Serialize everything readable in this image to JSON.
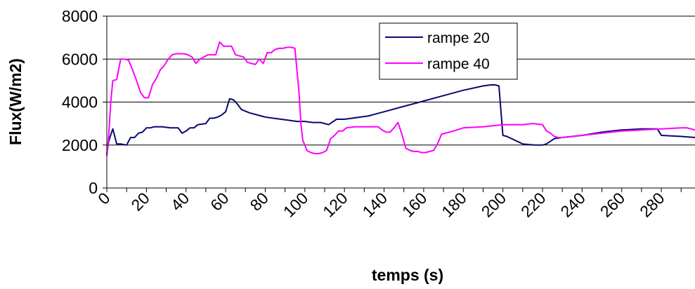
{
  "chart_data": {
    "type": "line",
    "title": "",
    "xlabel": "temps (s)",
    "ylabel": "Flux(W/m2)",
    "xlim": [
      0,
      297
    ],
    "ylim": [
      0,
      8000
    ],
    "x_ticks": [
      "0",
      "20",
      "40",
      "60",
      "80",
      "100",
      "120",
      "140",
      "160",
      "180",
      "200",
      "220",
      "240",
      "260",
      "280"
    ],
    "y_ticks": [
      "0",
      "2000",
      "4000",
      "6000",
      "8000"
    ],
    "grid": "horizontal",
    "legend_position": "top-center-right",
    "series": [
      {
        "name": "rampe 20",
        "color": "#0a0a6e",
        "x": [
          0,
          1,
          3,
          5,
          7,
          10,
          12,
          14,
          16,
          18,
          20,
          22,
          24,
          28,
          32,
          36,
          38,
          40,
          42,
          44,
          46,
          50,
          52,
          54,
          56,
          58,
          60,
          62,
          64,
          66,
          68,
          72,
          76,
          80,
          84,
          88,
          92,
          96,
          100,
          104,
          108,
          112,
          116,
          120,
          124,
          128,
          132,
          136,
          140,
          150,
          160,
          170,
          180,
          190,
          194,
          196,
          198,
          200,
          202,
          210,
          216,
          220,
          222,
          226,
          230,
          240,
          250,
          260,
          270,
          276,
          278,
          280,
          290,
          297
        ],
        "values": [
          1600,
          2200,
          2750,
          2050,
          2050,
          2000,
          2350,
          2350,
          2550,
          2600,
          2800,
          2800,
          2850,
          2850,
          2800,
          2800,
          2550,
          2650,
          2800,
          2800,
          2950,
          3000,
          3250,
          3250,
          3300,
          3400,
          3550,
          4150,
          4100,
          3900,
          3650,
          3500,
          3400,
          3300,
          3250,
          3200,
          3150,
          3100,
          3100,
          3050,
          3050,
          2950,
          3200,
          3200,
          3250,
          3300,
          3350,
          3450,
          3550,
          3800,
          4050,
          4300,
          4550,
          4750,
          4800,
          4800,
          4750,
          2450,
          2400,
          2050,
          2000,
          2000,
          2050,
          2300,
          2350,
          2450,
          2600,
          2700,
          2750,
          2750,
          2750,
          2450,
          2400,
          2350
        ]
      },
      {
        "name": "rampe 40",
        "color": "#ff00ff",
        "x": [
          0,
          1,
          2,
          3,
          5,
          7,
          9,
          11,
          13,
          15,
          17,
          19,
          21,
          23,
          25,
          27,
          29,
          31,
          33,
          35,
          39,
          41,
          43,
          45,
          47,
          49,
          51,
          53,
          55,
          57,
          59,
          61,
          63,
          65,
          67,
          69,
          71,
          73,
          75,
          77,
          79,
          81,
          83,
          85,
          87,
          89,
          91,
          93,
          95,
          96,
          97,
          98,
          99,
          100,
          101,
          103,
          105,
          107,
          109,
          111,
          113,
          115,
          117,
          119,
          121,
          125,
          131,
          135,
          137,
          139,
          141,
          143,
          145,
          147,
          149,
          151,
          153,
          155,
          157,
          159,
          161,
          163,
          165,
          167,
          169,
          171,
          175,
          180,
          190,
          200,
          210,
          215,
          220,
          222,
          224,
          226,
          228,
          230,
          240,
          250,
          260,
          270,
          280,
          290,
          293,
          297
        ],
        "values": [
          1500,
          2500,
          4000,
          5000,
          5050,
          6000,
          6000,
          5950,
          5500,
          5000,
          4450,
          4200,
          4200,
          4800,
          5100,
          5500,
          5700,
          6000,
          6200,
          6250,
          6250,
          6200,
          6100,
          5800,
          6000,
          6100,
          6200,
          6200,
          6200,
          6800,
          6600,
          6600,
          6600,
          6200,
          6150,
          6100,
          5850,
          5800,
          5750,
          6000,
          5800,
          6300,
          6300,
          6450,
          6500,
          6500,
          6550,
          6550,
          6500,
          5500,
          4500,
          3000,
          2200,
          2000,
          1750,
          1650,
          1600,
          1600,
          1650,
          1750,
          2300,
          2450,
          2650,
          2650,
          2800,
          2850,
          2850,
          2850,
          2850,
          2700,
          2600,
          2600,
          2800,
          3050,
          2500,
          1850,
          1750,
          1700,
          1700,
          1650,
          1650,
          1700,
          1750,
          2050,
          2500,
          2550,
          2650,
          2800,
          2850,
          2950,
          2950,
          3000,
          2950,
          2650,
          2550,
          2400,
          2350,
          2350,
          2450,
          2550,
          2650,
          2700,
          2750,
          2800,
          2800,
          2700
        ]
      }
    ]
  }
}
